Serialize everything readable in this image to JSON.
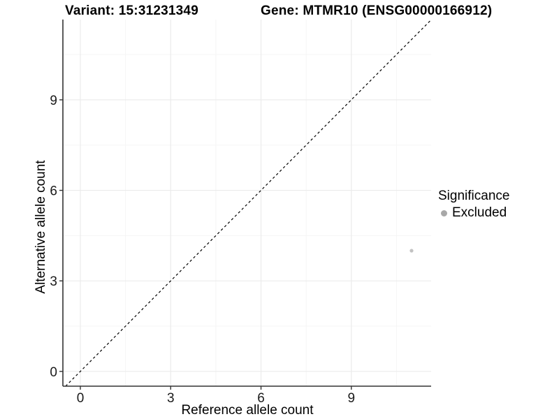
{
  "header": {
    "variant_title": "Variant: 15:31231349",
    "gene_title": "Gene: MTMR10 (ENSG00000166912)"
  },
  "legend": {
    "title": "Significance",
    "items": [
      {
        "label": "Excluded",
        "color": "#a8a8a8",
        "shape": "dot"
      }
    ]
  },
  "colors": {
    "background": "#ffffff",
    "major_grid": "#ebebeb",
    "minor_grid": "#f5f5f5",
    "axis_line": "#333333",
    "tick_label": "#1a1a1a",
    "reference_line": "#000000",
    "point": "#c2c2c2",
    "legend_dot": "#a8a8a8"
  },
  "chart_data": {
    "type": "scatter",
    "title_left": "Variant: 15:31231349",
    "title_right": "Gene: MTMR10 (ENSG00000166912)",
    "xlabel": "Reference allele count",
    "ylabel": "Alternative allele count",
    "xlim": [
      -0.58,
      11.65
    ],
    "ylim": [
      -0.49,
      11.66
    ],
    "x_ticks": [
      0,
      3,
      6,
      9
    ],
    "y_ticks": [
      0,
      3,
      6,
      9
    ],
    "x_minor_ticks": [
      1.5,
      4.5,
      7.5,
      10.5
    ],
    "y_minor_ticks": [
      1.5,
      4.5,
      7.5,
      10.5
    ],
    "grid": true,
    "legend_position": "right",
    "series": [
      {
        "name": "Excluded",
        "color": "#c2c2c2",
        "points": [
          {
            "x": 11,
            "y": 4
          }
        ]
      }
    ],
    "reference_line": {
      "equation": "y = x",
      "style": "dashed",
      "color": "#000000"
    }
  }
}
